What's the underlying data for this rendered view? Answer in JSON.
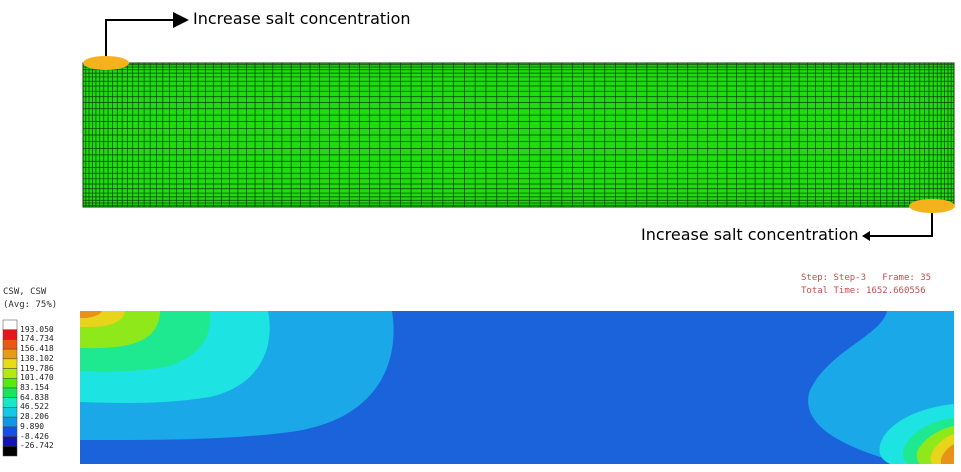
{
  "top_panel": {
    "annotation_top": "Increase salt concentration",
    "annotation_bottom": "Increase salt concentration",
    "mesh_color": "#1fdc10",
    "grid_color": "#0b3a06",
    "inlet_marker_color": "#f5b21c"
  },
  "bottom_panel": {
    "legend": {
      "variable": "CSW, CSW",
      "averaging": "(Avg: 75%)",
      "values": [
        "193.050",
        "174.734",
        "156.418",
        "138.102",
        "119.786",
        "101.470",
        "83.154",
        "64.838",
        "46.522",
        "28.206",
        "9.890",
        "-8.426",
        "-26.742"
      ],
      "colors": [
        "#ffffff",
        "#e8141b",
        "#e85a14",
        "#e89c14",
        "#e8dc14",
        "#b4e814",
        "#5ae814",
        "#14e85a",
        "#14e8c8",
        "#14c8e8",
        "#1496e8",
        "#1450e8",
        "#1414b4",
        "#000000"
      ]
    },
    "step_info": {
      "step_line": "Step: Step-3   Frame: 35",
      "time_line": "Total Time: 1652.660556"
    },
    "contour_colors": {
      "base": "#1a63db",
      "band1": "#1ba8e8",
      "band2": "#1ee3e3",
      "band3": "#1ee890",
      "band4": "#8fe81a",
      "band5": "#e8d41a",
      "band6": "#e8921a"
    }
  }
}
